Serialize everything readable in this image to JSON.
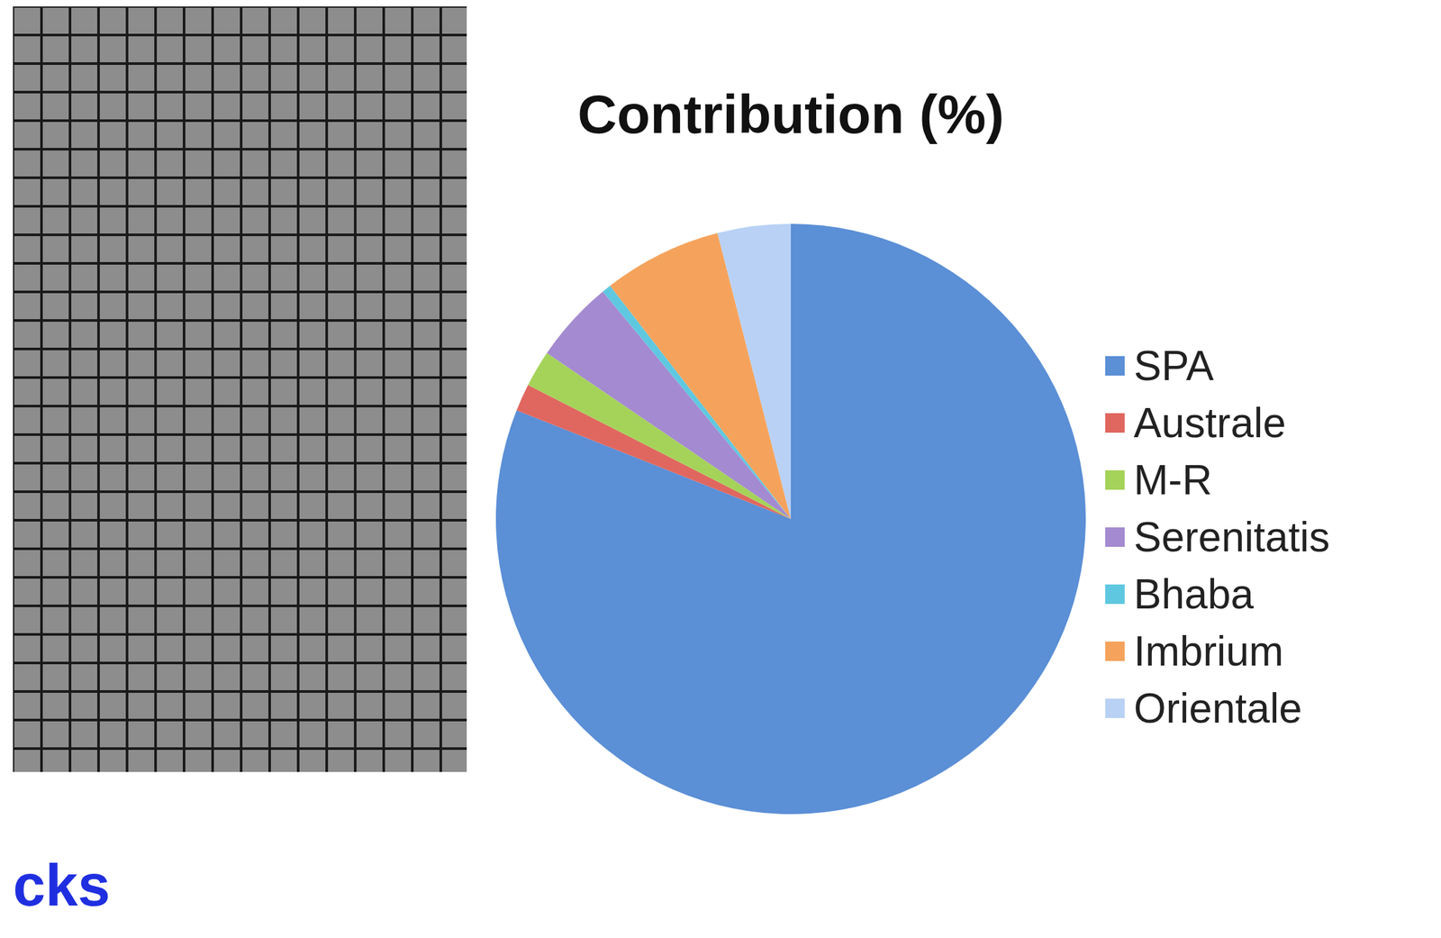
{
  "chart_data": {
    "type": "pie",
    "title": "Contribution (%)",
    "categories": [
      "SPA",
      "Australe",
      "M-R",
      "Serenitatis",
      "Bhaba",
      "Imbrium",
      "Orientale"
    ],
    "values": [
      81,
      1.5,
      2,
      4.5,
      0.5,
      6.5,
      4
    ],
    "colors": [
      "#5b8fd6",
      "#e0675f",
      "#a5d35a",
      "#a48ad0",
      "#5fc8e0",
      "#f5a35c",
      "#b9d1f5"
    ],
    "legend": "right",
    "annotations": [
      "cks"
    ]
  }
}
